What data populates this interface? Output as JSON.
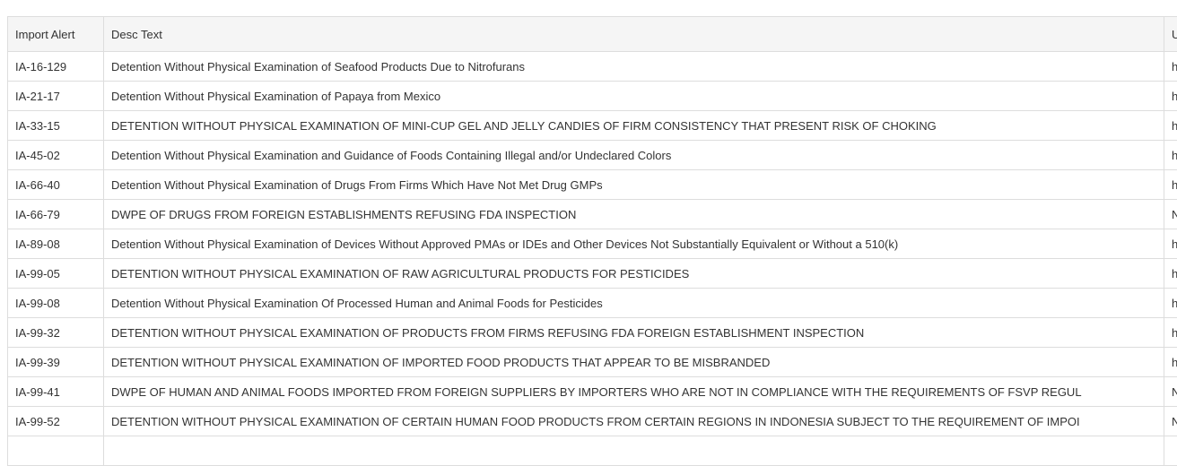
{
  "table": {
    "headers": [
      "Import Alert",
      "Desc Text",
      "U"
    ],
    "rows": [
      {
        "alert": "IA-16-129",
        "desc": "Detention Without Physical Examination of Seafood Products Due to Nitrofurans",
        "u": "h"
      },
      {
        "alert": "IA-21-17",
        "desc": "Detention Without Physical Examination of Papaya from Mexico",
        "u": "h"
      },
      {
        "alert": "IA-33-15",
        "desc": "DETENTION WITHOUT PHYSICAL EXAMINATION OF MINI-CUP GEL AND JELLY CANDIES OF FIRM CONSISTENCY THAT PRESENT RISK OF CHOKING",
        "u": "h"
      },
      {
        "alert": "IA-45-02",
        "desc": "Detention Without Physical Examination and Guidance of Foods Containing Illegal and/or Undeclared Colors",
        "u": "h"
      },
      {
        "alert": "IA-66-40",
        "desc": "Detention  Without Physical Examination of Drugs From Firms Which Have Not Met Drug GMPs",
        "u": "h"
      },
      {
        "alert": "IA-66-79",
        "desc": "DWPE OF DRUGS FROM FOREIGN ESTABLISHMENTS REFUSING FDA INSPECTION",
        "u": "N"
      },
      {
        "alert": "IA-89-08",
        "desc": "Detention Without Physical Examination of Devices Without Approved PMAs or IDEs and Other Devices Not Substantially Equivalent or Without a 510(k)",
        "u": "h"
      },
      {
        "alert": "IA-99-05",
        "desc": "DETENTION WITHOUT PHYSICAL EXAMINATION OF RAW AGRICULTURAL PRODUCTS FOR PESTICIDES",
        "u": "h"
      },
      {
        "alert": "IA-99-08",
        "desc": "Detention Without Physical Examination Of Processed Human and Animal Foods for Pesticides",
        "u": "h"
      },
      {
        "alert": "IA-99-32",
        "desc": "DETENTION WITHOUT PHYSICAL EXAMINATION OF PRODUCTS FROM FIRMS REFUSING FDA FOREIGN ESTABLISHMENT INSPECTION",
        "u": "h"
      },
      {
        "alert": "IA-99-39",
        "desc": "DETENTION WITHOUT PHYSICAL EXAMINATION OF IMPORTED FOOD PRODUCTS THAT APPEAR TO BE MISBRANDED",
        "u": "h"
      },
      {
        "alert": "IA-99-41",
        "desc": "DWPE OF HUMAN AND ANIMAL FOODS IMPORTED FROM FOREIGN SUPPLIERS BY IMPORTERS WHO ARE NOT IN COMPLIANCE WITH THE REQUIREMENTS OF FSVP REGUL",
        "u": "N"
      },
      {
        "alert": "IA-99-52",
        "desc": "DETENTION WITHOUT PHYSICAL EXAMINATION OF CERTAIN HUMAN FOOD PRODUCTS FROM CERTAIN REGIONS IN INDONESIA SUBJECT TO THE REQUIREMENT OF IMPOI",
        "u": "N"
      }
    ]
  }
}
